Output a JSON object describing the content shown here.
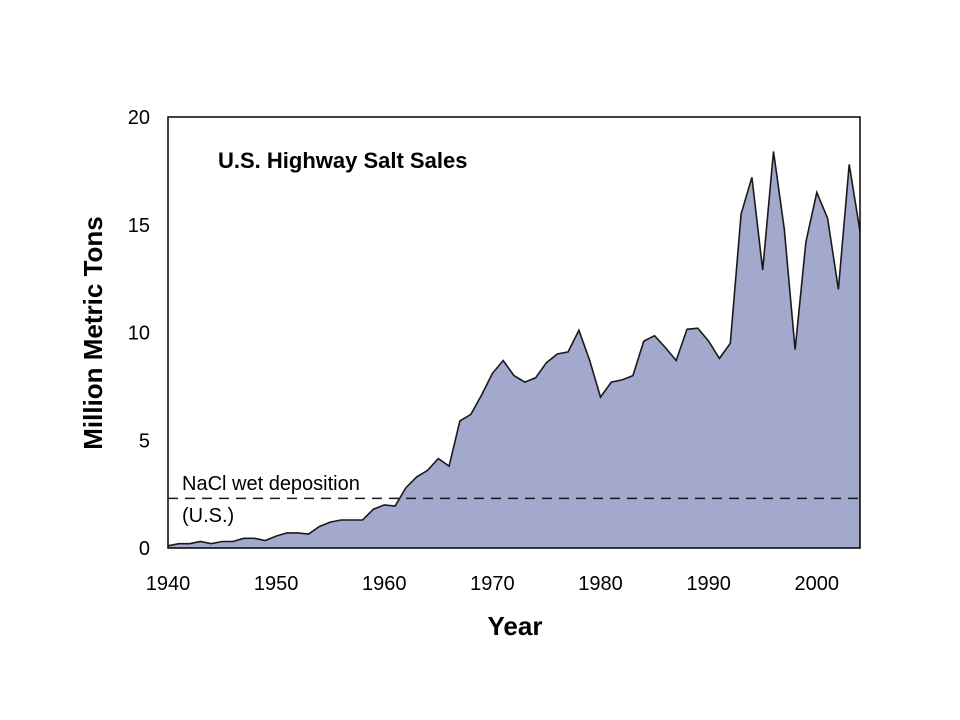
{
  "chart_data": {
    "type": "area",
    "title": "U.S. Highway Salt Sales",
    "xlabel": "Year",
    "ylabel": "Million Metric Tons",
    "xlim": [
      1940,
      2004
    ],
    "ylim": [
      0,
      20
    ],
    "xticks": [
      1940,
      1950,
      1960,
      1970,
      1980,
      1990,
      2000
    ],
    "yticks": [
      0,
      5,
      10,
      15,
      20
    ],
    "grid": false,
    "colors": {
      "fill": "#a3a9cd",
      "line": "#1a1a1a",
      "reference": "#1a1a1a"
    },
    "series": [
      {
        "x": [
          1940,
          1941,
          1942,
          1943,
          1944,
          1945,
          1946,
          1947,
          1948,
          1949,
          1950,
          1951,
          1952,
          1953,
          1954,
          1955,
          1956,
          1957,
          1958,
          1959,
          1960,
          1961,
          1962,
          1963,
          1964,
          1965,
          1966,
          1967,
          1968,
          1969,
          1970,
          1971,
          1972,
          1973,
          1974,
          1975,
          1976,
          1977,
          1978,
          1979,
          1980,
          1981,
          1982,
          1983,
          1984,
          1985,
          1986,
          1987,
          1988,
          1989,
          1990,
          1991,
          1992,
          1993,
          1994,
          1995,
          1996,
          1997,
          1998,
          1999,
          2000,
          2001,
          2002,
          2003,
          2004
        ],
        "values": [
          0.1,
          0.2,
          0.2,
          0.3,
          0.2,
          0.3,
          0.3,
          0.45,
          0.45,
          0.35,
          0.55,
          0.7,
          0.7,
          0.65,
          1.0,
          1.2,
          1.3,
          1.3,
          1.3,
          1.8,
          2.0,
          1.95,
          2.8,
          3.3,
          3.6,
          4.15,
          3.8,
          5.9,
          6.2,
          7.1,
          8.1,
          8.7,
          8.0,
          7.7,
          7.9,
          8.6,
          9.0,
          9.1,
          10.1,
          8.7,
          7.0,
          7.7,
          7.8,
          8.0,
          9.6,
          9.85,
          9.3,
          8.7,
          10.15,
          10.2,
          9.6,
          8.8,
          9.5,
          15.5,
          17.2,
          12.9,
          18.4,
          14.8,
          9.2,
          14.2,
          16.5,
          15.3,
          12.0,
          17.8,
          14.7
        ]
      }
    ],
    "reference_lines": [
      {
        "y": 2.3,
        "style": "dashed",
        "label_line1": "NaCl wet deposition",
        "label_line2": "(U.S.)"
      }
    ]
  }
}
